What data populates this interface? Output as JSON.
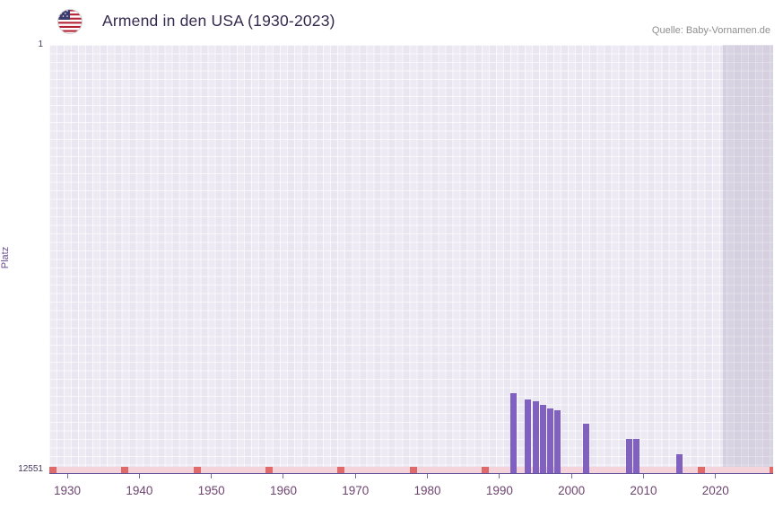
{
  "header": {
    "title": "Armend in den USA (1930-2023)",
    "source": "Quelle: Baby-Vornamen.de"
  },
  "axis": {
    "ylabel": "Platz",
    "y_top_label": "1",
    "y_bottom_label": "12551"
  },
  "icons": {
    "flag": "us-flag-icon"
  },
  "chart_data": {
    "type": "bar",
    "title": "Armend in den USA (1930-2023)",
    "xlabel": "",
    "ylabel": "Platz",
    "y_axis": {
      "min": 1,
      "max": 12551,
      "inverted": true,
      "note": "rank 1 at top, bars rise from bottom (12551) toward better rank"
    },
    "x_range": [
      1927.5,
      2028
    ],
    "x_ticks": [
      1930,
      1940,
      1950,
      1960,
      1970,
      1980,
      1990,
      2000,
      2010,
      2020
    ],
    "grid": true,
    "legend": false,
    "bars": [
      {
        "year": 1992,
        "rank": 10200
      },
      {
        "year": 1994,
        "rank": 10400
      },
      {
        "year": 1995,
        "rank": 10450
      },
      {
        "year": 1996,
        "rank": 10550
      },
      {
        "year": 1997,
        "rank": 10650
      },
      {
        "year": 1998,
        "rank": 10700
      },
      {
        "year": 2002,
        "rank": 11100
      },
      {
        "year": 2008,
        "rank": 11550
      },
      {
        "year": 2009,
        "rank": 11550
      },
      {
        "year": 2015,
        "rank": 12000
      }
    ],
    "unranked_strip": true,
    "unranked_marker_years": [
      1928,
      1938,
      1948,
      1958,
      1968,
      1978,
      1988,
      2018,
      2028
    ],
    "shaded_region": {
      "from": 2021,
      "to": 2028
    },
    "colors": {
      "bar": "#8161bf",
      "marker_red": "#e06a6a",
      "strip_pink": "#f4d3da",
      "plot_background": "#e9e5f1",
      "axis_line": "#63539b",
      "tick_label": "#6e4470",
      "title_text": "#33294e"
    }
  }
}
